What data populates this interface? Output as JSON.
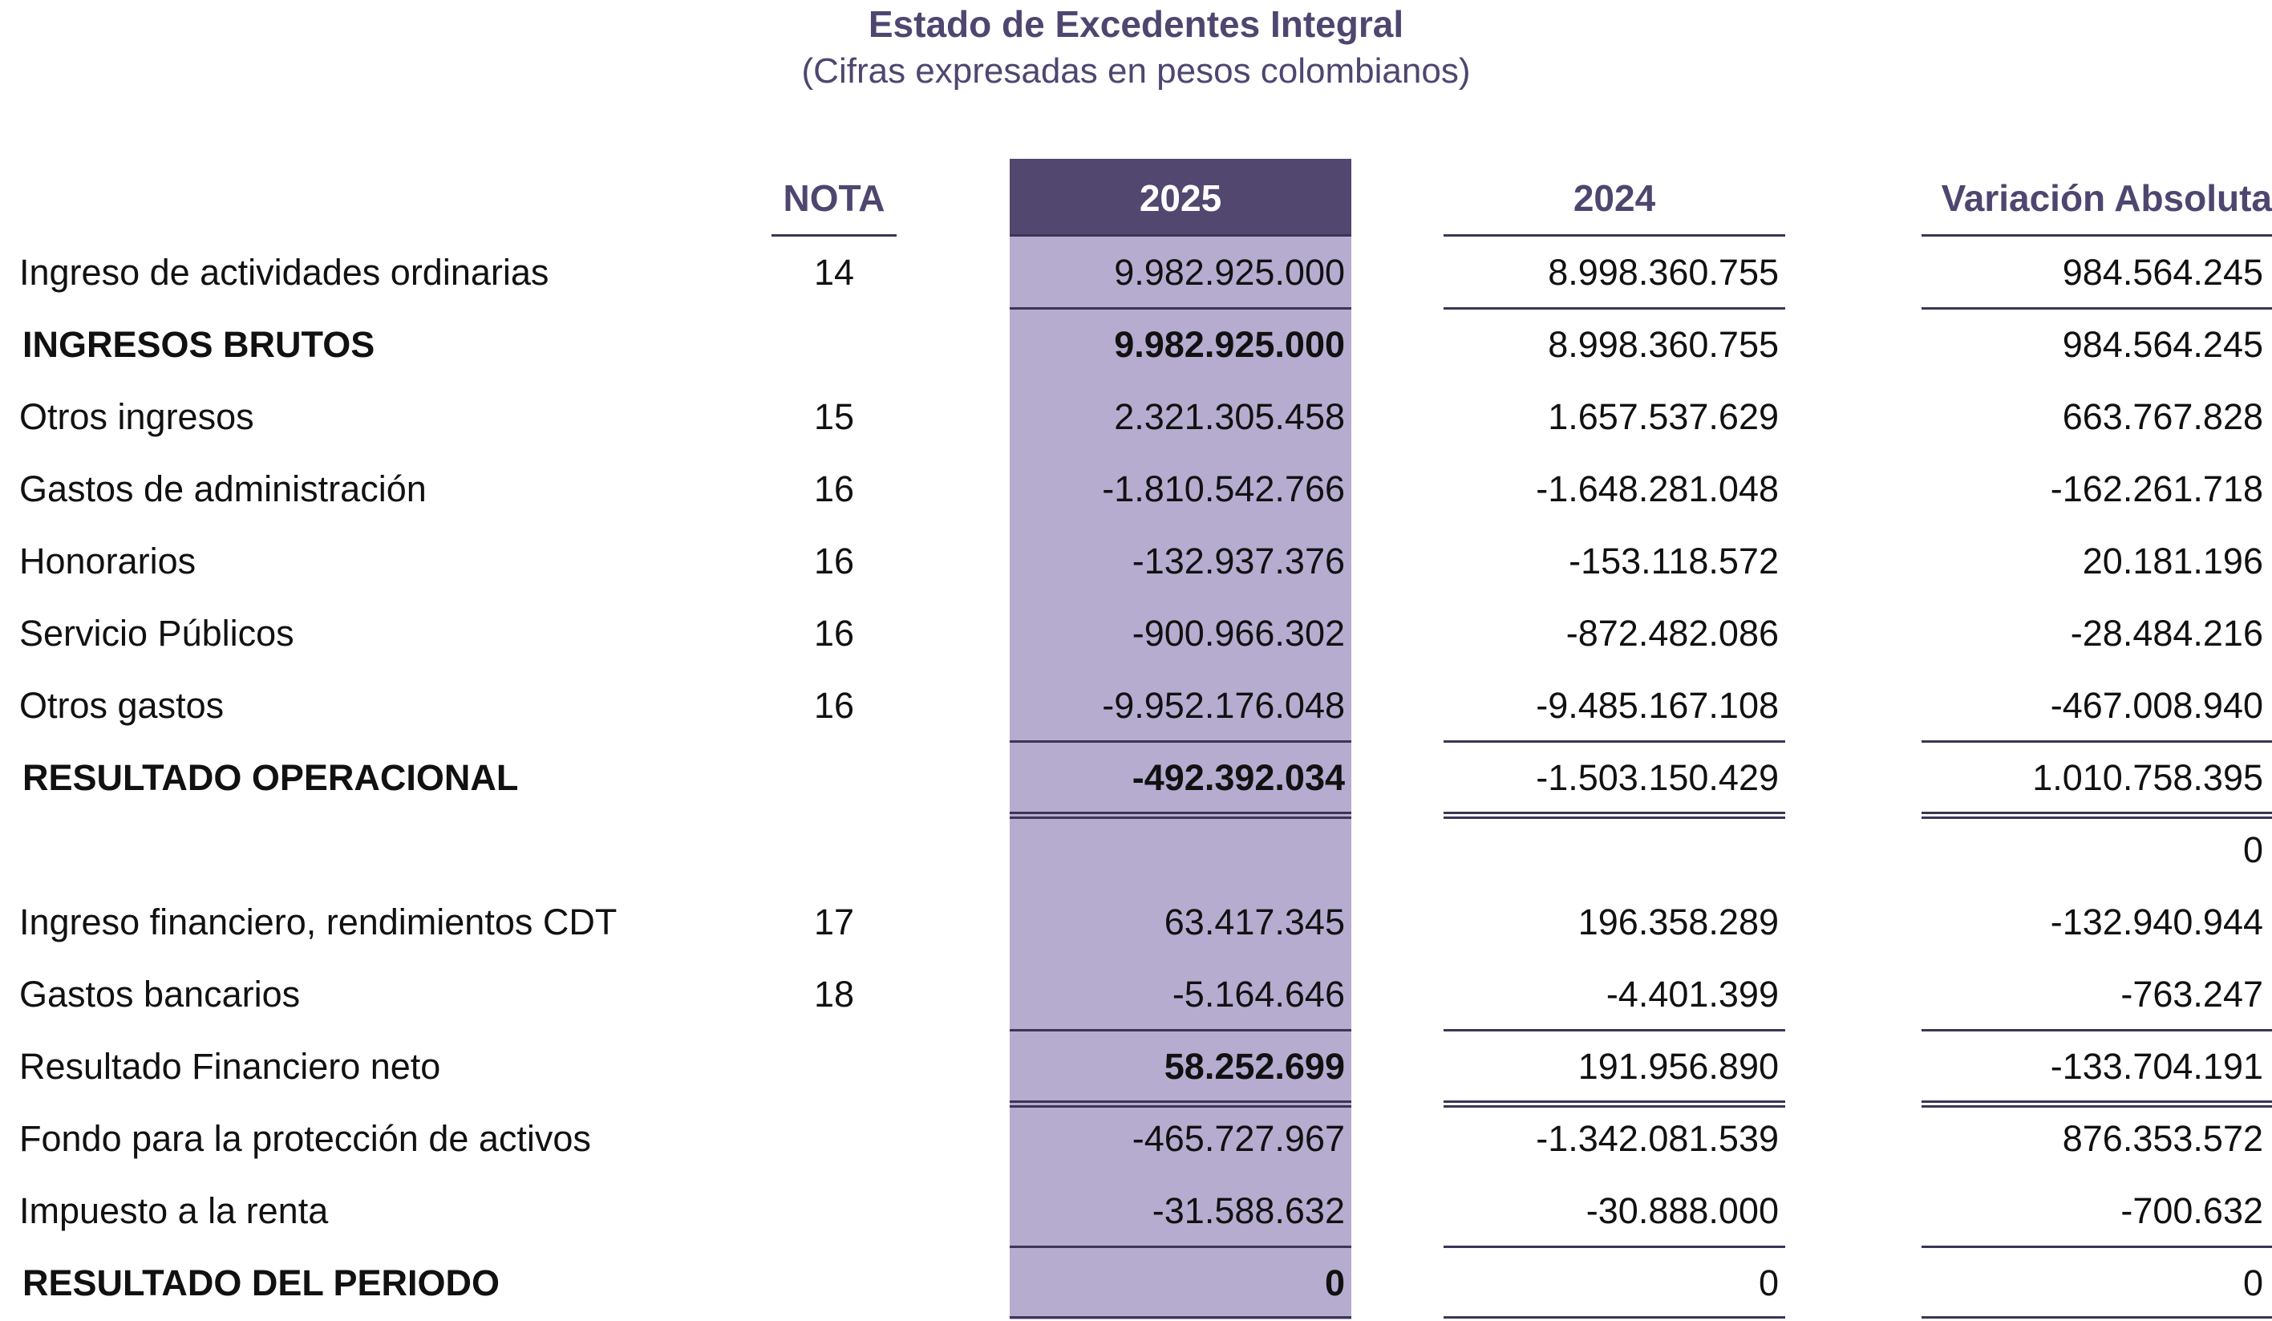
{
  "report": {
    "title": "Estado de Excedentes Integral",
    "subtitle": "(Cifras expresadas en pesos colombianos)"
  },
  "columns": {
    "nota": "NOTA",
    "y2025": "2025",
    "y2024": "2024",
    "variation": "Variación Absoluta"
  },
  "colors": {
    "header_dark": "#51476f",
    "highlight_fill": "#b5acd0",
    "title_text": "#4f4670"
  },
  "rows": [
    {
      "label": "Ingreso de actividades ordinarias",
      "nota": "14",
      "y2025": "9.982.925.000",
      "y2024": "8.998.360.755",
      "variation": "984.564.245"
    },
    {
      "label": "INGRESOS BRUTOS",
      "nota": "",
      "y2025": "9.982.925.000",
      "y2024": "8.998.360.755",
      "variation": "984.564.245"
    },
    {
      "label": "Otros ingresos",
      "nota": "15",
      "y2025": "2.321.305.458",
      "y2024": "1.657.537.629",
      "variation": "663.767.828"
    },
    {
      "label": "Gastos de administración",
      "nota": "16",
      "y2025": "-1.810.542.766",
      "y2024": "-1.648.281.048",
      "variation": "-162.261.718"
    },
    {
      "label": "Honorarios",
      "nota": "16",
      "y2025": "-132.937.376",
      "y2024": "-153.118.572",
      "variation": "20.181.196"
    },
    {
      "label": "Servicio Públicos",
      "nota": "16",
      "y2025": "-900.966.302",
      "y2024": "-872.482.086",
      "variation": "-28.484.216"
    },
    {
      "label": "Otros gastos",
      "nota": "16",
      "y2025": "-9.952.176.048",
      "y2024": "-9.485.167.108",
      "variation": "-467.008.940"
    },
    {
      "label": "RESULTADO OPERACIONAL",
      "nota": "",
      "y2025": "-492.392.034",
      "y2024": "-1.503.150.429",
      "variation": "1.010.758.395"
    },
    {
      "label": "",
      "nota": "",
      "y2025": "",
      "y2024": "",
      "variation": "0"
    },
    {
      "label": "Ingreso financiero, rendimientos CDT",
      "nota": "17",
      "y2025": "63.417.345",
      "y2024": "196.358.289",
      "variation": "-132.940.944"
    },
    {
      "label": "Gastos bancarios",
      "nota": "18",
      "y2025": "-5.164.646",
      "y2024": "-4.401.399",
      "variation": "-763.247"
    },
    {
      "label": "Resultado Financiero neto",
      "nota": "",
      "y2025": "58.252.699",
      "y2024": "191.956.890",
      "variation": "-133.704.191"
    },
    {
      "label": "Fondo para la protección de activos",
      "nota": "",
      "y2025": "-465.727.967",
      "y2024": "-1.342.081.539",
      "variation": "876.353.572"
    },
    {
      "label": "Impuesto a la renta",
      "nota": "",
      "y2025": "-31.588.632",
      "y2024": "-30.888.000",
      "variation": "-700.632"
    },
    {
      "label": "RESULTADO DEL PERIODO",
      "nota": "",
      "y2025": "0",
      "y2024": "0",
      "variation": "0"
    }
  ]
}
